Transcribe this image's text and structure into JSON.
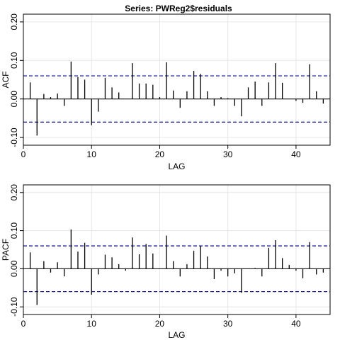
{
  "title": "Series:  PWReg2$residuals",
  "colors": {
    "bar": "#000000",
    "ci": "#00008b",
    "grid": "#e6e6e6",
    "frame": "#000000"
  },
  "chart_data": [
    {
      "type": "bar",
      "panel": "ACF",
      "xlabel": "LAG",
      "ylabel": "ACF",
      "xlim": [
        0,
        45
      ],
      "ylim": [
        -0.12,
        0.22
      ],
      "xticks": [
        0,
        10,
        20,
        30,
        40
      ],
      "yticks": [
        -0.1,
        0.0,
        0.1,
        0.2
      ],
      "ytick_labels": [
        "-0.10",
        "0.00",
        "0.10",
        "0.20"
      ],
      "grid": true,
      "ci": 0.06,
      "lags": [
        1,
        2,
        3,
        4,
        5,
        6,
        7,
        8,
        9,
        10,
        11,
        12,
        13,
        14,
        15,
        16,
        17,
        18,
        19,
        20,
        21,
        22,
        23,
        24,
        25,
        26,
        27,
        28,
        29,
        30,
        31,
        32,
        33,
        34,
        35,
        36,
        37,
        38,
        39,
        40,
        41,
        42,
        43,
        44
      ],
      "values": [
        0.043,
        -0.095,
        0.013,
        0.005,
        0.014,
        -0.018,
        0.097,
        0.057,
        0.05,
        -0.068,
        -0.033,
        0.055,
        0.03,
        0.017,
        0.0,
        0.093,
        0.04,
        0.04,
        0.037,
        0.005,
        0.095,
        0.022,
        -0.023,
        0.02,
        0.073,
        0.065,
        0.02,
        -0.018,
        0.005,
        0.002,
        -0.018,
        -0.045,
        0.03,
        0.045,
        -0.018,
        0.043,
        0.093,
        0.042,
        0.0,
        -0.005,
        -0.01,
        0.09,
        0.02,
        -0.012
      ]
    },
    {
      "type": "bar",
      "panel": "PACF",
      "xlabel": "LAG",
      "ylabel": "PACF",
      "xlim": [
        0,
        45
      ],
      "ylim": [
        -0.12,
        0.22
      ],
      "xticks": [
        0,
        10,
        20,
        30,
        40
      ],
      "yticks": [
        -0.1,
        0.0,
        0.1,
        0.2
      ],
      "ytick_labels": [
        "-0.10",
        "0.00",
        "0.10",
        "0.20"
      ],
      "grid": true,
      "ci": 0.06,
      "lags": [
        1,
        2,
        3,
        4,
        5,
        6,
        7,
        8,
        9,
        10,
        11,
        12,
        13,
        14,
        15,
        16,
        17,
        18,
        19,
        20,
        21,
        22,
        23,
        24,
        25,
        26,
        27,
        28,
        29,
        30,
        31,
        32,
        33,
        34,
        35,
        36,
        37,
        38,
        39,
        40,
        41,
        42,
        43,
        44
      ],
      "values": [
        0.043,
        -0.095,
        0.02,
        -0.01,
        0.017,
        -0.02,
        0.103,
        0.045,
        0.068,
        -0.068,
        -0.015,
        0.037,
        0.03,
        0.012,
        -0.005,
        0.082,
        0.038,
        0.065,
        0.04,
        0.0,
        0.087,
        0.02,
        -0.02,
        0.012,
        0.047,
        0.06,
        0.032,
        -0.027,
        -0.005,
        -0.02,
        -0.012,
        -0.063,
        0.0,
        0.002,
        -0.02,
        0.055,
        0.075,
        0.028,
        0.01,
        -0.005,
        -0.025,
        0.07,
        -0.015,
        -0.01
      ]
    }
  ]
}
